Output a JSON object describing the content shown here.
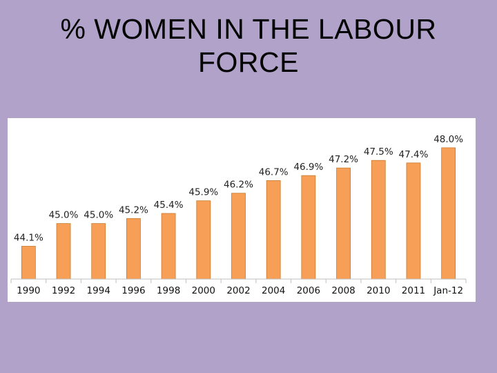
{
  "slide": {
    "title_line1": "% WOMEN IN THE LABOUR",
    "title_line2": "FORCE"
  },
  "colors": {
    "background": "#b1a2c9",
    "bar_fill": "#f79f56",
    "panel": "#ffffff"
  },
  "chart_data": {
    "type": "bar",
    "categories": [
      "1990",
      "1992",
      "1994",
      "1996",
      "1998",
      "2000",
      "2002",
      "2004",
      "2006",
      "2008",
      "2010",
      "2011",
      "Jan-12"
    ],
    "values": [
      44.1,
      45.0,
      45.0,
      45.2,
      45.4,
      45.9,
      46.2,
      46.7,
      46.9,
      47.2,
      47.5,
      47.4,
      48.0
    ],
    "data_labels": [
      "44.1%",
      "45.0%",
      "45.0%",
      "45.2%",
      "45.4%",
      "45.9%",
      "46.2%",
      "46.7%",
      "46.9%",
      "47.2%",
      "47.5%",
      "47.4%",
      "48.0%"
    ],
    "title": "",
    "xlabel": "",
    "ylabel": "",
    "ylim": [
      42.8,
      48.6
    ],
    "grid": false,
    "legend": "none"
  }
}
